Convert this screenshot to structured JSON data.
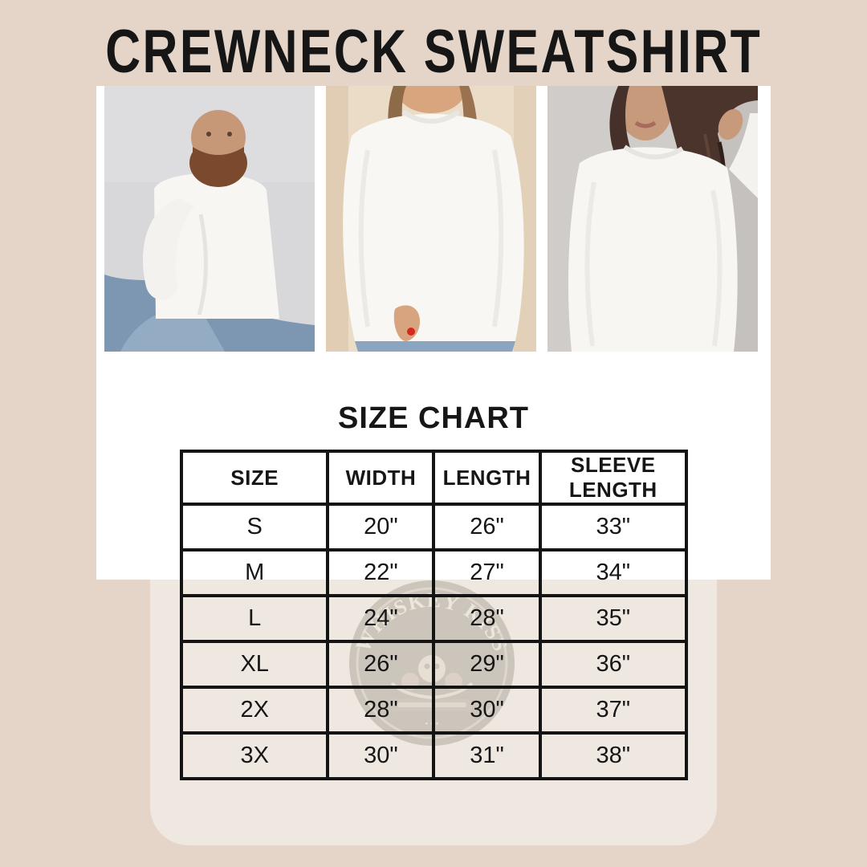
{
  "title": "CREWNECK SWEATSHIRT",
  "photos": [
    {
      "alt": "bearded man sitting in white crewneck sweatshirt and blue jeans, hand on chin"
    },
    {
      "alt": "woman in white crewneck sweatshirt with hand in jeans pocket, red nail polish"
    },
    {
      "alt": "woman with long dark wavy hair in white crewneck sweatshirt"
    }
  ],
  "size_chart": {
    "heading": "SIZE CHART",
    "columns": [
      "SIZE",
      "WIDTH",
      "LENGTH",
      "SLEEVE LENGTH"
    ],
    "rows": [
      [
        "S",
        "20\"",
        "26\"",
        "33\""
      ],
      [
        "M",
        "22\"",
        "27\"",
        "34\""
      ],
      [
        "L",
        "24\"",
        "28\"",
        "35\""
      ],
      [
        "XL",
        "26\"",
        "29\"",
        "36\""
      ],
      [
        "2X",
        "28\"",
        "30\"",
        "37\""
      ],
      [
        "3X",
        "30\"",
        "31\"",
        "38\""
      ]
    ]
  },
  "watermark": {
    "text": "WHISKEY KISS"
  },
  "chart_data": {
    "type": "table",
    "title": "SIZE CHART",
    "columns": [
      "SIZE",
      "WIDTH",
      "LENGTH",
      "SLEEVE LENGTH"
    ],
    "rows": [
      [
        "S",
        "20\"",
        "26\"",
        "33\""
      ],
      [
        "M",
        "22\"",
        "27\"",
        "34\""
      ],
      [
        "L",
        "24\"",
        "28\"",
        "35\""
      ],
      [
        "XL",
        "26\"",
        "29\"",
        "36\""
      ],
      [
        "2X",
        "28\"",
        "30\"",
        "37\""
      ],
      [
        "3X",
        "30\"",
        "31\"",
        "38\""
      ]
    ]
  },
  "colors": {
    "background": "#e4d5c8",
    "panel": "#eee8e1",
    "card": "#ffffff",
    "text": "#161616",
    "table_border": "#141414"
  }
}
